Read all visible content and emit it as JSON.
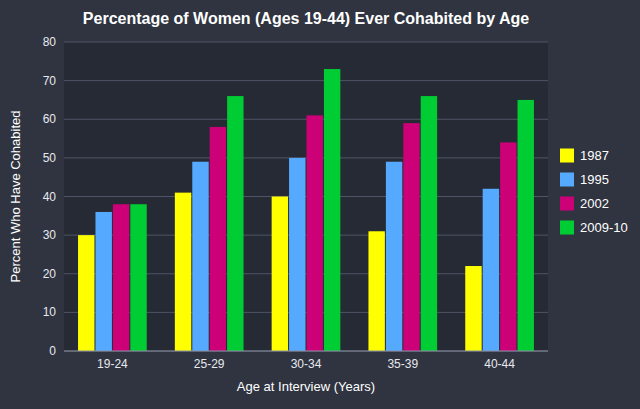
{
  "chart_data": {
    "type": "bar",
    "title": "Percentage of Women (Ages 19-44) Ever Cohabited by Age",
    "xlabel": "Age at Interview (Years)",
    "ylabel": "Percent Who Have Cohabited",
    "categories": [
      "19-24",
      "25-29",
      "30-34",
      "35-39",
      "40-44"
    ],
    "series": [
      {
        "name": "1987",
        "color": "#ffff00",
        "values": [
          30,
          41,
          40,
          31,
          22
        ]
      },
      {
        "name": "1995",
        "color": "#55aaff",
        "values": [
          36,
          49,
          50,
          49,
          42
        ]
      },
      {
        "name": "2002",
        "color": "#cc0077",
        "values": [
          38,
          58,
          61,
          59,
          54
        ]
      },
      {
        "name": "2009-10",
        "color": "#00cc33",
        "values": [
          38,
          66,
          73,
          66,
          65
        ]
      }
    ],
    "ylim": [
      0,
      80
    ],
    "yticks": [
      0,
      10,
      20,
      30,
      40,
      50,
      60,
      70,
      80
    ],
    "grid": true,
    "legend": "right"
  }
}
